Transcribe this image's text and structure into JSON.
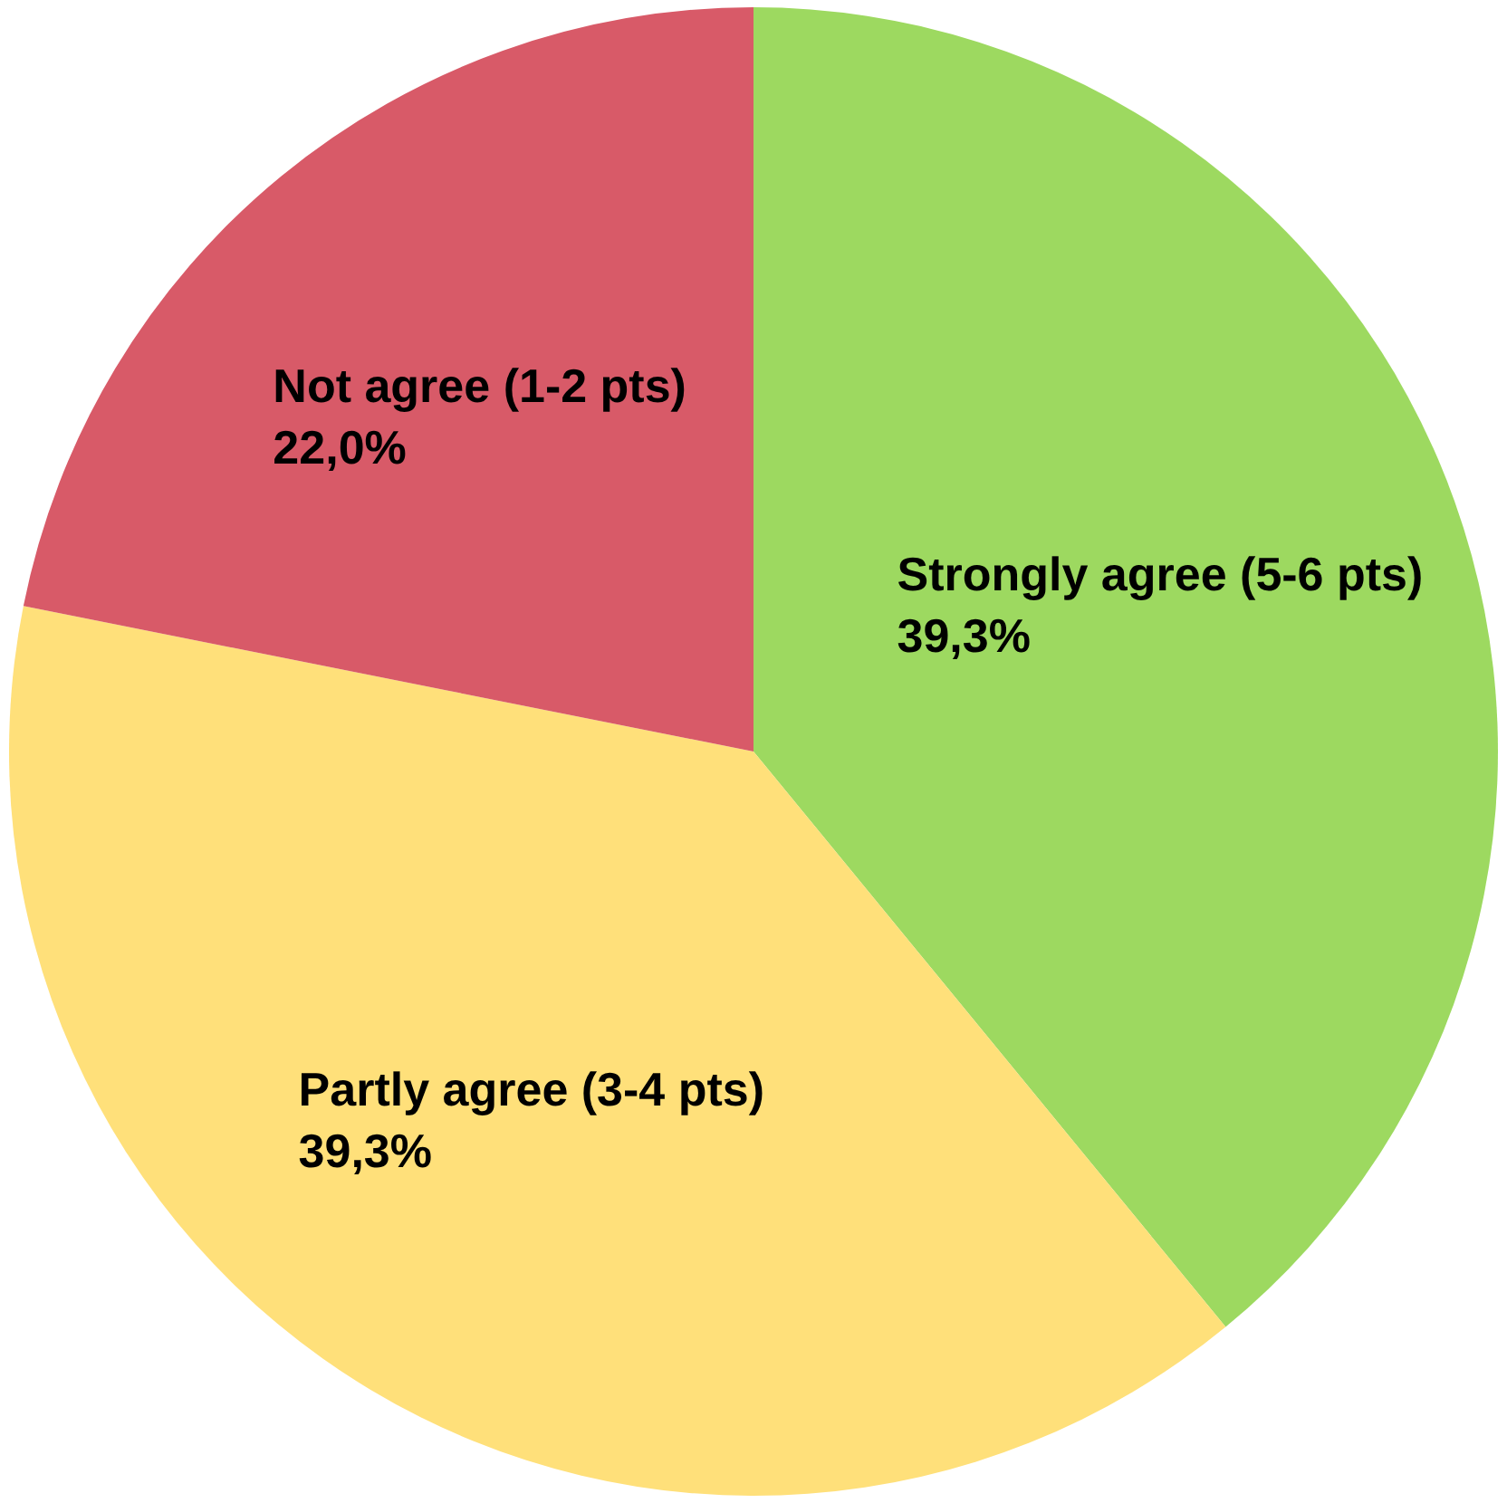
{
  "chart_data": {
    "type": "pie",
    "categories": [
      "Strongly agree (5-6 pts)",
      "Partly agree (3-4 pts)",
      "Not agree (1-2 pts)"
    ],
    "values": [
      39.3,
      39.3,
      22.0
    ],
    "colors": [
      "#9dd960",
      "#ffe07a",
      "#d85a68"
    ],
    "value_labels": [
      "39,3%",
      "39,3%",
      "22,0%"
    ],
    "legend": false
  }
}
